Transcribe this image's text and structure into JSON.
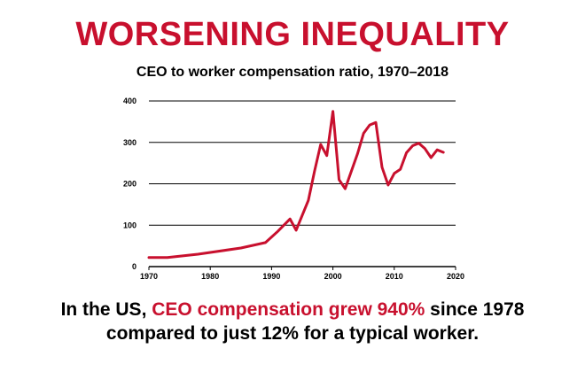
{
  "header": {
    "title": "WORSENING INEQUALITY",
    "subtitle": "CEO to worker compensation ratio, 1970–2018"
  },
  "caption": {
    "line1_prefix": "In the US, ",
    "line1_highlight": "CEO compensation grew 940%",
    "line1_suffix": " since 1978",
    "line2": "compared to just 12% for a typical worker."
  },
  "colors": {
    "accent": "#c8102e",
    "line": "#c8102e",
    "grid": "#000000"
  },
  "chart_data": {
    "type": "line",
    "title": "CEO to worker compensation ratio, 1970–2018",
    "xlabel": "",
    "ylabel": "",
    "xlim": [
      1970,
      2020
    ],
    "ylim": [
      0,
      400
    ],
    "xticks": [
      "1970",
      "1980",
      "1990",
      "2000",
      "2010",
      "2020"
    ],
    "yticks": [
      "0",
      "100",
      "200",
      "300",
      "400"
    ],
    "grid": "horizontal",
    "series": [
      {
        "color": "#c8102e",
        "x": [
          1970,
          1973,
          1978,
          1985,
          1989,
          1991,
          1993,
          1994,
          1996,
          1997,
          1998,
          1999,
          2000,
          2001,
          2002,
          2004,
          2005,
          2006,
          2007,
          2008,
          2009,
          2010,
          2011,
          2012,
          2013,
          2014,
          2015,
          2016,
          2017,
          2018
        ],
        "values": [
          22,
          22,
          30,
          45,
          58,
          85,
          115,
          88,
          160,
          230,
          295,
          268,
          375,
          210,
          188,
          272,
          322,
          342,
          348,
          240,
          197,
          225,
          235,
          275,
          292,
          298,
          285,
          263,
          282,
          276
        ]
      }
    ]
  }
}
